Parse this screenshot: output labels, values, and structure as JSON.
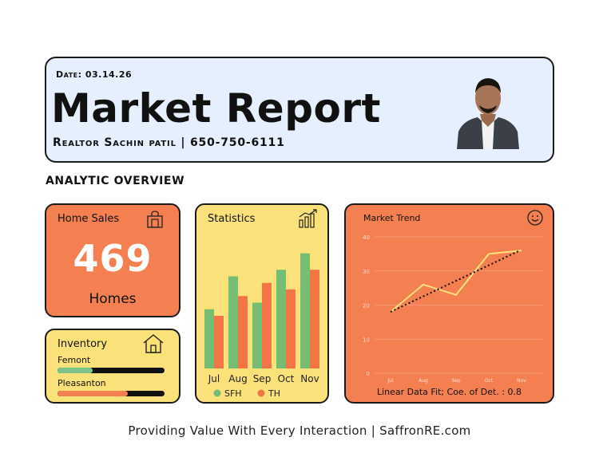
{
  "header": {
    "date": "Date: 03.14.26",
    "title": "Market Report",
    "realtor": "Realtor Sachin patil | 650-750-6111"
  },
  "section_title": "ANALYTIC OVERVIEW",
  "home_sales": {
    "label": "Home Sales",
    "value": "469",
    "unit": "Homes",
    "icon": "shopping-bag-icon"
  },
  "inventory": {
    "label": "Inventory",
    "icon": "house-icon",
    "items": [
      {
        "name": "Femont",
        "level": 0.33,
        "color": "#7ec48a"
      },
      {
        "name": "Pleasanton",
        "level": 0.66,
        "color": "#f48052"
      }
    ]
  },
  "statistics": {
    "label": "Statistics",
    "icon": "bar-chart-icon"
  },
  "market_trend": {
    "label": "Market Trend",
    "icon": "smiley-icon",
    "footnote": "Linear Data Fit; Coe. of Det. : 0.8"
  },
  "footer": "Providing Value With Every Interaction  |  SaffronRE.com",
  "chart_data": [
    {
      "type": "bar",
      "categories": [
        "Jul",
        "Aug",
        "Sep",
        "Oct",
        "Nov"
      ],
      "series": [
        {
          "name": "SFH",
          "values": [
            18,
            28,
            20,
            30,
            35
          ],
          "color": "#76bd74"
        },
        {
          "name": "TH",
          "values": [
            16,
            22,
            26,
            24,
            30
          ],
          "color": "#f47446"
        }
      ],
      "ylim": [
        0,
        40
      ],
      "legend": "bottom"
    },
    {
      "type": "line",
      "categories": [
        "Jul",
        "Aug",
        "Sep",
        "Oct",
        "Nov"
      ],
      "series": [
        {
          "values": [
            18,
            26,
            23,
            35,
            36
          ],
          "color": "#fbe17a"
        }
      ],
      "trendline": {
        "start": 18,
        "end": 36,
        "style": "dotted",
        "color": "#111111"
      },
      "yticks": [
        0,
        10,
        20,
        30,
        40
      ],
      "ylim": [
        0,
        40
      ],
      "grid": true
    }
  ]
}
